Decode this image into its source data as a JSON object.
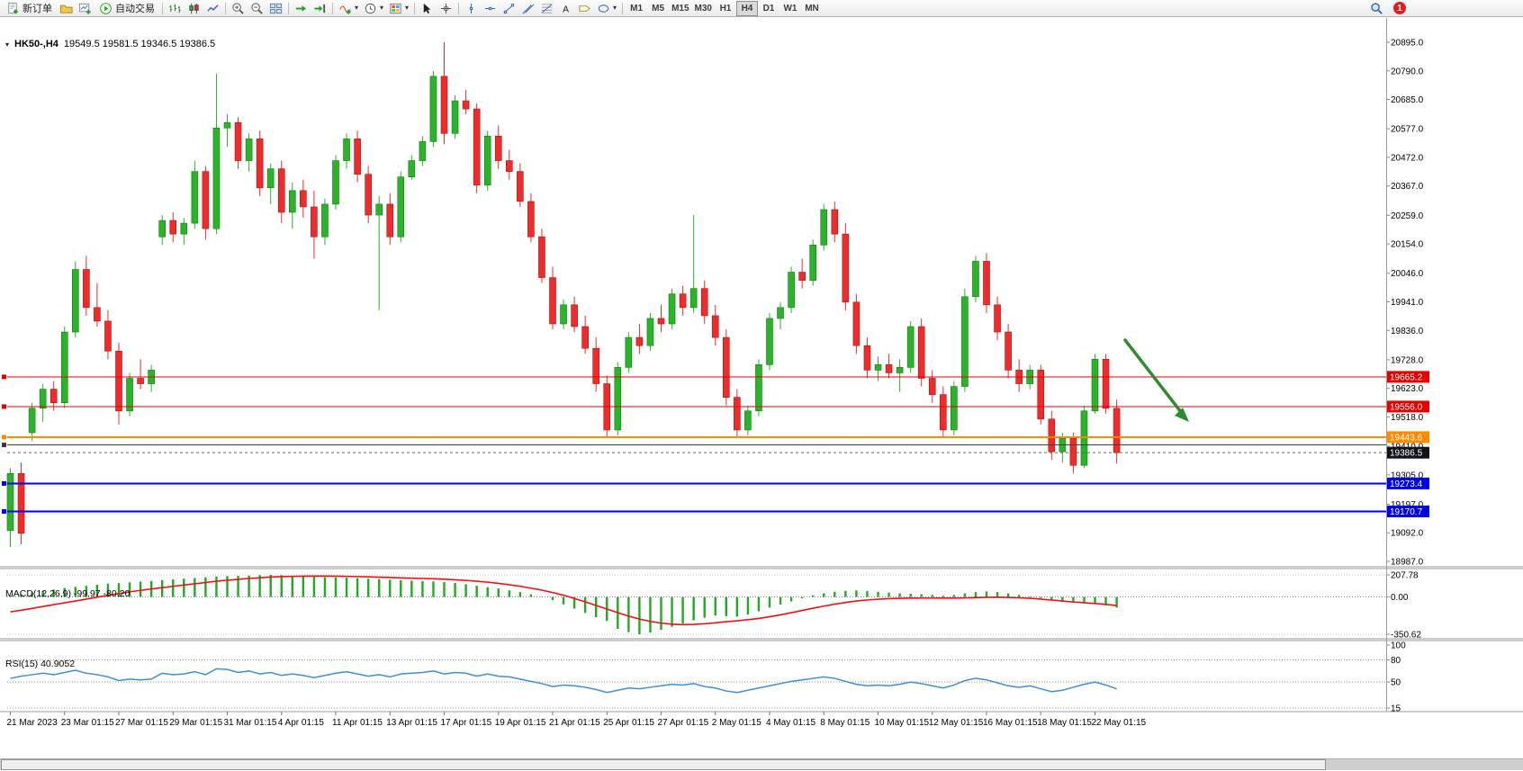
{
  "toolbar": {
    "new_order_label": "新订单",
    "auto_trading_label": "自动交易",
    "timeframes": [
      "M1",
      "M5",
      "M15",
      "M30",
      "H1",
      "H4",
      "D1",
      "W1",
      "MN"
    ],
    "active_timeframe": "H4",
    "notification_count": "1",
    "icon_names": [
      "new-order",
      "profiles-folder",
      "new-chart",
      "auto-trading-play",
      "bar-chart-mode",
      "candlestick-mode",
      "line-chart-mode",
      "zoom-in",
      "zoom-out",
      "tile-windows",
      "auto-scroll",
      "chart-shift",
      "indicators",
      "periods",
      "templates",
      "cursor",
      "crosshair",
      "vertical-line",
      "horizontal-line",
      "trendline",
      "equidistant-channel",
      "fibonacci-retracement",
      "text",
      "text-label",
      "shapes",
      "search",
      "notifications"
    ]
  },
  "chart_header": {
    "symbol_period": "HK50-,H4",
    "ohlc": "19549.5 19581.5 19346.5 19386.5"
  },
  "indicators": {
    "macd_label": "MACD(12,26,9) -99.97 -80.20",
    "rsi_label": "RSI(15) 40.9052"
  },
  "chart_data": [
    {
      "type": "candlestick",
      "title": "HK50-,H4",
      "symbol": "HK50-",
      "period": "H4",
      "ohlc_current": {
        "open": 19549.5,
        "high": 19581.5,
        "low": 19346.5,
        "close": 19386.5
      },
      "ylim": [
        18987,
        20895
      ],
      "colors": {
        "up": "#2bb32b",
        "down": "#ee2c2c"
      },
      "price_axis_ticks": [
        "20895.0",
        "20790.0",
        "20685.0",
        "20577.0",
        "20472.0",
        "20367.0",
        "20259.0",
        "20154.0",
        "20046.0",
        "19941.0",
        "19836.0",
        "19728.0",
        "19623.0",
        "19518.0",
        "19410.0",
        "19305.0",
        "19197.0",
        "19092.0",
        "18987.0"
      ],
      "x_label_step": 5,
      "x_labels": [
        "21 Mar 2023",
        "23 Mar 01:15",
        "27 Mar 01:15",
        "29 Mar 01:15",
        "31 Mar 01:15",
        "4 Apr 01:15",
        "11 Apr 01:15",
        "13 Apr 01:15",
        "17 Apr 01:15",
        "19 Apr 01:15",
        "21 Apr 01:15",
        "25 Apr 01:15",
        "27 Apr 01:15",
        "2 May 01:15",
        "4 May 01:15",
        "8 May 01:15",
        "10 May 01:15",
        "12 May 01:15",
        "16 May 01:15",
        "18 May 01:15",
        "22 May 01:15"
      ],
      "levels": [
        {
          "value": 19665.2,
          "color": "#e60000",
          "width": 1.2,
          "tag": true
        },
        {
          "value": 19556.0,
          "color": "#e60000",
          "width": 1.2,
          "tag": true
        },
        {
          "value": 19443.6,
          "color": "#ff8a00",
          "width": 2,
          "tag": true
        },
        {
          "value": 19415.0,
          "color": "#3c3c3c",
          "width": 1.2,
          "tag": false
        },
        {
          "value": 19273.4,
          "color": "#0000e6",
          "width": 2,
          "tag": true
        },
        {
          "value": 19170.7,
          "color": "#0000e6",
          "width": 2,
          "tag": true
        }
      ],
      "current_price": 19386.5,
      "current_price_tag_color": "#10121a",
      "annotation": {
        "shape": "arrow",
        "color": "#2e8b2e",
        "direction": "down-right"
      },
      "candles": [
        [
          19100,
          19330,
          19040,
          19310
        ],
        [
          19310,
          19350,
          19050,
          19090
        ],
        [
          19460,
          19570,
          19430,
          19550
        ],
        [
          19550,
          19640,
          19500,
          19620
        ],
        [
          19620,
          19650,
          19540,
          19570
        ],
        [
          19570,
          19850,
          19550,
          19830
        ],
        [
          19830,
          20090,
          19810,
          20060
        ],
        [
          20060,
          20110,
          19890,
          19920
        ],
        [
          19920,
          20010,
          19850,
          19870
        ],
        [
          19870,
          19910,
          19730,
          19760
        ],
        [
          19760,
          19790,
          19490,
          19540
        ],
        [
          19540,
          19680,
          19520,
          19660
        ],
        [
          19660,
          19730,
          19620,
          19640
        ],
        [
          19640,
          19710,
          19610,
          19690
        ],
        [
          20180,
          20260,
          20150,
          20240
        ],
        [
          20240,
          20270,
          20160,
          20190
        ],
        [
          20190,
          20250,
          20150,
          20230
        ],
        [
          20230,
          20460,
          20210,
          20420
        ],
        [
          20420,
          20440,
          20170,
          20210
        ],
        [
          20210,
          20780,
          20190,
          20580
        ],
        [
          20580,
          20630,
          20510,
          20600
        ],
        [
          20600,
          20620,
          20430,
          20460
        ],
        [
          20460,
          20560,
          20420,
          20540
        ],
        [
          20540,
          20570,
          20330,
          20360
        ],
        [
          20360,
          20450,
          20300,
          20430
        ],
        [
          20430,
          20460,
          20230,
          20270
        ],
        [
          20270,
          20380,
          20210,
          20350
        ],
        [
          20350,
          20390,
          20250,
          20290
        ],
        [
          20290,
          20350,
          20100,
          20180
        ],
        [
          20180,
          20320,
          20150,
          20300
        ],
        [
          20300,
          20480,
          20280,
          20460
        ],
        [
          20460,
          20560,
          20430,
          20540
        ],
        [
          20540,
          20570,
          20380,
          20410
        ],
        [
          20410,
          20440,
          20230,
          20260
        ],
        [
          20260,
          20330,
          19910,
          20300
        ],
        [
          20300,
          20340,
          20150,
          20180
        ],
        [
          20180,
          20420,
          20160,
          20400
        ],
        [
          20400,
          20480,
          20390,
          20460
        ],
        [
          20460,
          20550,
          20440,
          20530
        ],
        [
          20530,
          20790,
          20510,
          20770
        ],
        [
          20770,
          20895,
          20520,
          20560
        ],
        [
          20560,
          20700,
          20540,
          20680
        ],
        [
          20680,
          20720,
          20630,
          20650
        ],
        [
          20650,
          20670,
          20340,
          20370
        ],
        [
          20370,
          20570,
          20350,
          20550
        ],
        [
          20550,
          20590,
          20430,
          20460
        ],
        [
          20460,
          20500,
          20390,
          20420
        ],
        [
          20420,
          20450,
          20290,
          20310
        ],
        [
          20310,
          20340,
          20160,
          20180
        ],
        [
          20180,
          20210,
          20010,
          20030
        ],
        [
          20030,
          20070,
          19840,
          19860
        ],
        [
          19860,
          19950,
          19840,
          19930
        ],
        [
          19930,
          19960,
          19830,
          19850
        ],
        [
          19850,
          19890,
          19750,
          19770
        ],
        [
          19770,
          19810,
          19610,
          19640
        ],
        [
          19640,
          19670,
          19440,
          19470
        ],
        [
          19470,
          19720,
          19450,
          19700
        ],
        [
          19700,
          19830,
          19680,
          19810
        ],
        [
          19810,
          19860,
          19750,
          19780
        ],
        [
          19780,
          19900,
          19760,
          19880
        ],
        [
          19880,
          19930,
          19830,
          19860
        ],
        [
          19860,
          19990,
          19840,
          19970
        ],
        [
          19970,
          20000,
          19890,
          19920
        ],
        [
          19920,
          20260,
          19900,
          19990
        ],
        [
          19990,
          20020,
          19860,
          19890
        ],
        [
          19890,
          19930,
          19780,
          19810
        ],
        [
          19810,
          19840,
          19560,
          19590
        ],
        [
          19590,
          19620,
          19440,
          19470
        ],
        [
          19470,
          19560,
          19450,
          19540
        ],
        [
          19540,
          19730,
          19520,
          19710
        ],
        [
          19710,
          19900,
          19690,
          19880
        ],
        [
          19880,
          19940,
          19840,
          19920
        ],
        [
          19920,
          20070,
          19900,
          20050
        ],
        [
          20050,
          20100,
          19990,
          20020
        ],
        [
          20020,
          20170,
          20000,
          20150
        ],
        [
          20150,
          20300,
          20130,
          20280
        ],
        [
          20280,
          20310,
          20160,
          20190
        ],
        [
          20190,
          20230,
          19910,
          19940
        ],
        [
          19940,
          19970,
          19750,
          19780
        ],
        [
          19780,
          19810,
          19660,
          19690
        ],
        [
          19690,
          19740,
          19650,
          19710
        ],
        [
          19710,
          19750,
          19660,
          19680
        ],
        [
          19680,
          19730,
          19610,
          19700
        ],
        [
          19700,
          19870,
          19680,
          19850
        ],
        [
          19850,
          19880,
          19630,
          19660
        ],
        [
          19660,
          19690,
          19570,
          19600
        ],
        [
          19600,
          19630,
          19440,
          19470
        ],
        [
          19470,
          19650,
          19450,
          19630
        ],
        [
          19630,
          19990,
          19610,
          19960
        ],
        [
          19960,
          20110,
          19940,
          20090
        ],
        [
          20090,
          20120,
          19900,
          19930
        ],
        [
          19930,
          19960,
          19800,
          19830
        ],
        [
          19830,
          19860,
          19660,
          19690
        ],
        [
          19690,
          19730,
          19610,
          19640
        ],
        [
          19640,
          19710,
          19620,
          19690
        ],
        [
          19690,
          19710,
          19490,
          19510
        ],
        [
          19510,
          19540,
          19360,
          19390
        ],
        [
          19390,
          19460,
          19350,
          19440
        ],
        [
          19440,
          19460,
          19310,
          19340
        ],
        [
          19340,
          19560,
          19330,
          19540
        ],
        [
          19540,
          19750,
          19530,
          19730
        ],
        [
          19730,
          19750,
          19530,
          19549.5
        ],
        [
          19549.5,
          19581.5,
          19346.5,
          19386.5
        ]
      ]
    },
    {
      "type": "bar",
      "title": "MACD(12,26,9)",
      "label": "MACD(12,26,9) -99.97 -80.20",
      "current_macd": -99.97,
      "current_signal": -80.2,
      "ylim": [
        -350.62,
        207.78
      ],
      "y_ticks": [
        "207.78",
        "0.00",
        "-350.62"
      ],
      "colors": {
        "histogram": "#22aa22",
        "signal": "#ee1111"
      },
      "histogram": [
        15,
        25,
        40,
        55,
        70,
        85,
        95,
        105,
        115,
        125,
        130,
        138,
        145,
        150,
        158,
        165,
        172,
        178,
        185,
        192,
        196,
        199,
        202,
        205,
        207.78,
        205,
        200,
        196,
        190,
        186,
        184,
        182,
        178,
        172,
        168,
        162,
        158,
        154,
        150,
        146,
        140,
        132,
        120,
        105,
        92,
        80,
        62,
        45,
        25,
        5,
        -30,
        -70,
        -110,
        -150,
        -190,
        -225,
        -300,
        -330,
        -350.62,
        -335,
        -310,
        -280,
        -250,
        -220,
        -195,
        -175,
        -180,
        -185,
        -165,
        -135,
        -100,
        -72,
        -42,
        -12,
        15,
        35,
        48,
        58,
        62,
        55,
        48,
        40,
        34,
        30,
        26,
        20,
        12,
        20,
        34,
        46,
        52,
        46,
        34,
        20,
        6,
        -10,
        -28,
        -44,
        -54,
        -50,
        -58,
        -78,
        -99.97
      ],
      "signal": [
        -140,
        -125,
        -108,
        -90,
        -72,
        -55,
        -38,
        -20,
        -2,
        15,
        32,
        48,
        62,
        75,
        88,
        100,
        112,
        124,
        136,
        148,
        158,
        166,
        174,
        181,
        187,
        191,
        194,
        196,
        197,
        197,
        196,
        194,
        192,
        189,
        186,
        183,
        180,
        177,
        174,
        171,
        167,
        162,
        156,
        148,
        139,
        128,
        115,
        100,
        83,
        64,
        42,
        16,
        -14,
        -46,
        -80,
        -114,
        -148,
        -180,
        -208,
        -230,
        -246,
        -256,
        -260,
        -258,
        -252,
        -243,
        -233,
        -224,
        -214,
        -202,
        -186,
        -168,
        -148,
        -127,
        -106,
        -86,
        -68,
        -52,
        -38,
        -28,
        -21,
        -16,
        -13,
        -11,
        -10,
        -10,
        -11,
        -11,
        -9,
        -6,
        -3,
        -2,
        -4,
        -8,
        -13,
        -20,
        -29,
        -38,
        -47,
        -54,
        -61,
        -70,
        -80.2
      ]
    },
    {
      "type": "line",
      "title": "RSI(15)",
      "label": "RSI(15) 40.9052",
      "current": 40.9052,
      "ylim": [
        15,
        100
      ],
      "y_ticks": [
        "100",
        "80",
        "50",
        "15"
      ],
      "levels_dotted": [
        80,
        50,
        15
      ],
      "color": "#3f8fd4",
      "values": [
        55,
        58,
        60,
        62,
        60,
        63,
        66,
        62,
        60,
        57,
        52,
        54,
        53,
        54,
        62,
        60,
        61,
        64,
        60,
        68,
        67,
        63,
        65,
        61,
        63,
        59,
        61,
        59,
        56,
        59,
        62,
        64,
        61,
        58,
        60,
        57,
        61,
        62,
        63,
        65,
        61,
        63,
        62,
        58,
        61,
        58,
        57,
        54,
        51,
        48,
        44,
        46,
        45,
        43,
        40,
        36,
        39,
        42,
        41,
        43,
        45,
        47,
        46,
        48,
        44,
        42,
        38,
        36,
        39,
        42,
        45,
        48,
        51,
        53,
        55,
        57,
        55,
        51,
        47,
        45,
        46,
        45,
        47,
        50,
        48,
        45,
        42,
        46,
        52,
        55,
        53,
        49,
        45,
        43,
        45,
        41,
        37,
        39,
        43,
        47,
        50,
        46,
        40.9
      ]
    }
  ]
}
